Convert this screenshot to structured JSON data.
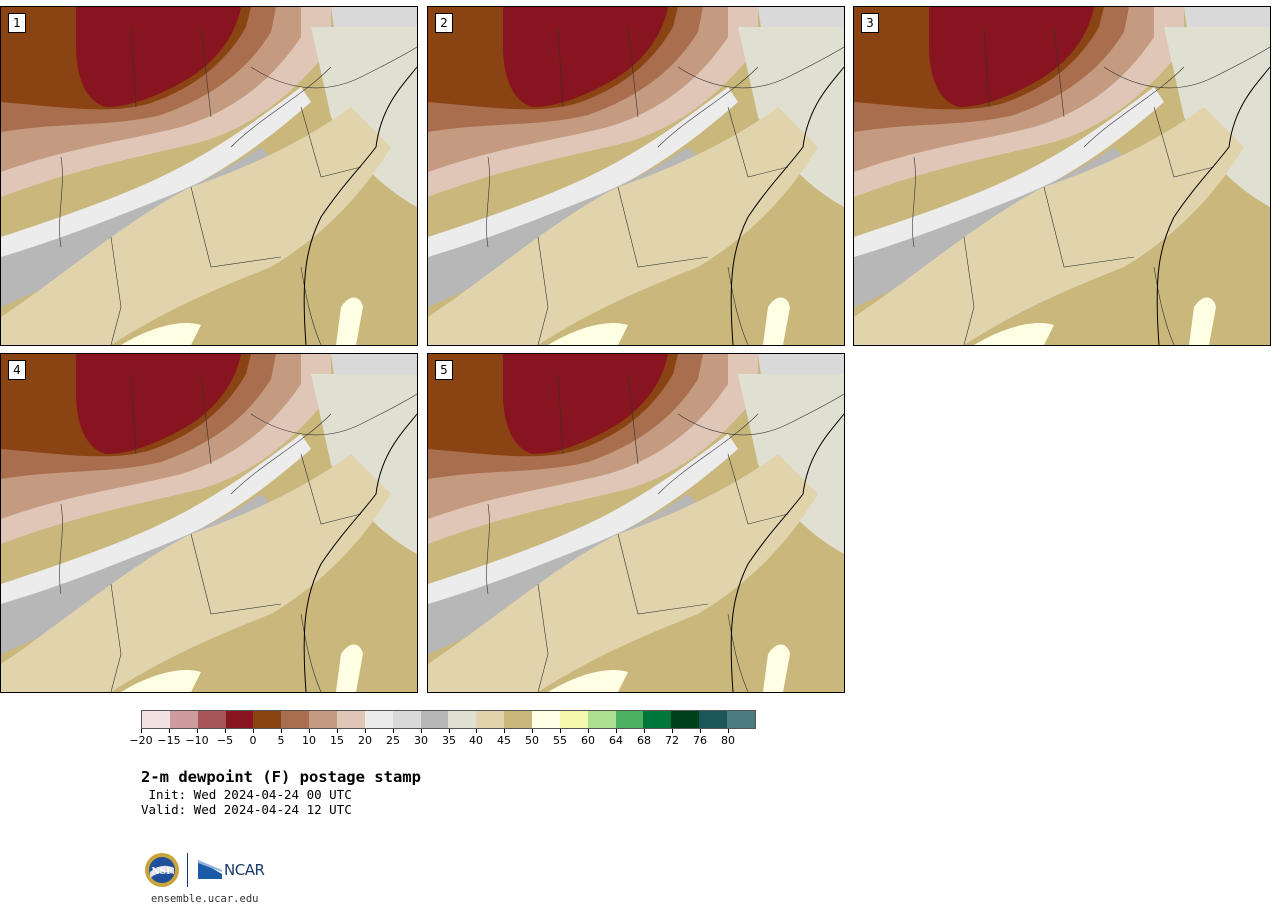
{
  "panels": [
    {
      "label": "1"
    },
    {
      "label": "2"
    },
    {
      "label": "3"
    },
    {
      "label": "4"
    },
    {
      "label": "5"
    }
  ],
  "colorbar": {
    "colors": [
      "#f2e1e1",
      "#cf9b9e",
      "#a75559",
      "#88141f",
      "#8a4312",
      "#a86e4d",
      "#c49a80",
      "#e0c6b6",
      "#ececec",
      "#d9d9d9",
      "#b7b7b7",
      "#e0e0d2",
      "#e1d4ad",
      "#c9b77c",
      "#fefee3",
      "#f4f7ae",
      "#ace08f",
      "#4cb262",
      "#00773a",
      "#00401d",
      "#1b5659",
      "#4c7c80"
    ],
    "tick_labels": [
      "−20",
      "−15",
      "−10",
      "−5",
      "0",
      "5",
      "10",
      "15",
      "20",
      "25",
      "30",
      "35",
      "40",
      "45",
      "50",
      "55",
      "60",
      "64",
      "68",
      "72",
      "76",
      "80"
    ]
  },
  "title": "2-m dewpoint (F) postage stamp",
  "init": " Init: Wed 2024-04-24 00 UTC",
  "valid": "Valid: Wed 2024-04-24 12 UTC",
  "logos": {
    "ncar": "NCAR"
  },
  "site": "ensemble.ucar.edu"
}
